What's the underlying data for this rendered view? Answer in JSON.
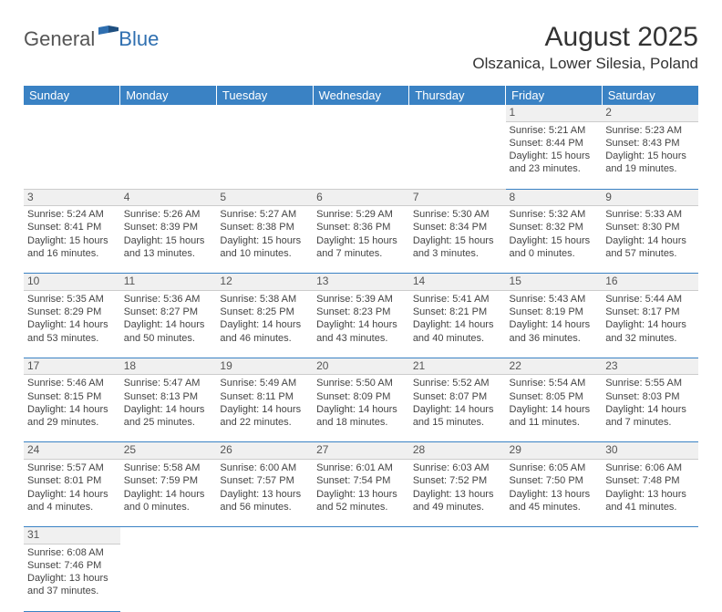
{
  "logo": {
    "text1": "General",
    "text2": "Blue"
  },
  "title": "August 2025",
  "location": "Olszanica, Lower Silesia, Poland",
  "colors": {
    "header_bg": "#3a82c4",
    "header_text": "#ffffff",
    "daynum_bg": "#f0f0f0",
    "cell_border": "#3a82c4",
    "text": "#444444"
  },
  "weekdays": [
    "Sunday",
    "Monday",
    "Tuesday",
    "Wednesday",
    "Thursday",
    "Friday",
    "Saturday"
  ],
  "weeks": [
    [
      null,
      null,
      null,
      null,
      null,
      {
        "d": "1",
        "sr": "Sunrise: 5:21 AM",
        "ss": "Sunset: 8:44 PM",
        "dl1": "Daylight: 15 hours",
        "dl2": "and 23 minutes."
      },
      {
        "d": "2",
        "sr": "Sunrise: 5:23 AM",
        "ss": "Sunset: 8:43 PM",
        "dl1": "Daylight: 15 hours",
        "dl2": "and 19 minutes."
      }
    ],
    [
      {
        "d": "3",
        "sr": "Sunrise: 5:24 AM",
        "ss": "Sunset: 8:41 PM",
        "dl1": "Daylight: 15 hours",
        "dl2": "and 16 minutes."
      },
      {
        "d": "4",
        "sr": "Sunrise: 5:26 AM",
        "ss": "Sunset: 8:39 PM",
        "dl1": "Daylight: 15 hours",
        "dl2": "and 13 minutes."
      },
      {
        "d": "5",
        "sr": "Sunrise: 5:27 AM",
        "ss": "Sunset: 8:38 PM",
        "dl1": "Daylight: 15 hours",
        "dl2": "and 10 minutes."
      },
      {
        "d": "6",
        "sr": "Sunrise: 5:29 AM",
        "ss": "Sunset: 8:36 PM",
        "dl1": "Daylight: 15 hours",
        "dl2": "and 7 minutes."
      },
      {
        "d": "7",
        "sr": "Sunrise: 5:30 AM",
        "ss": "Sunset: 8:34 PM",
        "dl1": "Daylight: 15 hours",
        "dl2": "and 3 minutes."
      },
      {
        "d": "8",
        "sr": "Sunrise: 5:32 AM",
        "ss": "Sunset: 8:32 PM",
        "dl1": "Daylight: 15 hours",
        "dl2": "and 0 minutes."
      },
      {
        "d": "9",
        "sr": "Sunrise: 5:33 AM",
        "ss": "Sunset: 8:30 PM",
        "dl1": "Daylight: 14 hours",
        "dl2": "and 57 minutes."
      }
    ],
    [
      {
        "d": "10",
        "sr": "Sunrise: 5:35 AM",
        "ss": "Sunset: 8:29 PM",
        "dl1": "Daylight: 14 hours",
        "dl2": "and 53 minutes."
      },
      {
        "d": "11",
        "sr": "Sunrise: 5:36 AM",
        "ss": "Sunset: 8:27 PM",
        "dl1": "Daylight: 14 hours",
        "dl2": "and 50 minutes."
      },
      {
        "d": "12",
        "sr": "Sunrise: 5:38 AM",
        "ss": "Sunset: 8:25 PM",
        "dl1": "Daylight: 14 hours",
        "dl2": "and 46 minutes."
      },
      {
        "d": "13",
        "sr": "Sunrise: 5:39 AM",
        "ss": "Sunset: 8:23 PM",
        "dl1": "Daylight: 14 hours",
        "dl2": "and 43 minutes."
      },
      {
        "d": "14",
        "sr": "Sunrise: 5:41 AM",
        "ss": "Sunset: 8:21 PM",
        "dl1": "Daylight: 14 hours",
        "dl2": "and 40 minutes."
      },
      {
        "d": "15",
        "sr": "Sunrise: 5:43 AM",
        "ss": "Sunset: 8:19 PM",
        "dl1": "Daylight: 14 hours",
        "dl2": "and 36 minutes."
      },
      {
        "d": "16",
        "sr": "Sunrise: 5:44 AM",
        "ss": "Sunset: 8:17 PM",
        "dl1": "Daylight: 14 hours",
        "dl2": "and 32 minutes."
      }
    ],
    [
      {
        "d": "17",
        "sr": "Sunrise: 5:46 AM",
        "ss": "Sunset: 8:15 PM",
        "dl1": "Daylight: 14 hours",
        "dl2": "and 29 minutes."
      },
      {
        "d": "18",
        "sr": "Sunrise: 5:47 AM",
        "ss": "Sunset: 8:13 PM",
        "dl1": "Daylight: 14 hours",
        "dl2": "and 25 minutes."
      },
      {
        "d": "19",
        "sr": "Sunrise: 5:49 AM",
        "ss": "Sunset: 8:11 PM",
        "dl1": "Daylight: 14 hours",
        "dl2": "and 22 minutes."
      },
      {
        "d": "20",
        "sr": "Sunrise: 5:50 AM",
        "ss": "Sunset: 8:09 PM",
        "dl1": "Daylight: 14 hours",
        "dl2": "and 18 minutes."
      },
      {
        "d": "21",
        "sr": "Sunrise: 5:52 AM",
        "ss": "Sunset: 8:07 PM",
        "dl1": "Daylight: 14 hours",
        "dl2": "and 15 minutes."
      },
      {
        "d": "22",
        "sr": "Sunrise: 5:54 AM",
        "ss": "Sunset: 8:05 PM",
        "dl1": "Daylight: 14 hours",
        "dl2": "and 11 minutes."
      },
      {
        "d": "23",
        "sr": "Sunrise: 5:55 AM",
        "ss": "Sunset: 8:03 PM",
        "dl1": "Daylight: 14 hours",
        "dl2": "and 7 minutes."
      }
    ],
    [
      {
        "d": "24",
        "sr": "Sunrise: 5:57 AM",
        "ss": "Sunset: 8:01 PM",
        "dl1": "Daylight: 14 hours",
        "dl2": "and 4 minutes."
      },
      {
        "d": "25",
        "sr": "Sunrise: 5:58 AM",
        "ss": "Sunset: 7:59 PM",
        "dl1": "Daylight: 14 hours",
        "dl2": "and 0 minutes."
      },
      {
        "d": "26",
        "sr": "Sunrise: 6:00 AM",
        "ss": "Sunset: 7:57 PM",
        "dl1": "Daylight: 13 hours",
        "dl2": "and 56 minutes."
      },
      {
        "d": "27",
        "sr": "Sunrise: 6:01 AM",
        "ss": "Sunset: 7:54 PM",
        "dl1": "Daylight: 13 hours",
        "dl2": "and 52 minutes."
      },
      {
        "d": "28",
        "sr": "Sunrise: 6:03 AM",
        "ss": "Sunset: 7:52 PM",
        "dl1": "Daylight: 13 hours",
        "dl2": "and 49 minutes."
      },
      {
        "d": "29",
        "sr": "Sunrise: 6:05 AM",
        "ss": "Sunset: 7:50 PM",
        "dl1": "Daylight: 13 hours",
        "dl2": "and 45 minutes."
      },
      {
        "d": "30",
        "sr": "Sunrise: 6:06 AM",
        "ss": "Sunset: 7:48 PM",
        "dl1": "Daylight: 13 hours",
        "dl2": "and 41 minutes."
      }
    ],
    [
      {
        "d": "31",
        "sr": "Sunrise: 6:08 AM",
        "ss": "Sunset: 7:46 PM",
        "dl1": "Daylight: 13 hours",
        "dl2": "and 37 minutes."
      },
      null,
      null,
      null,
      null,
      null,
      null
    ]
  ]
}
